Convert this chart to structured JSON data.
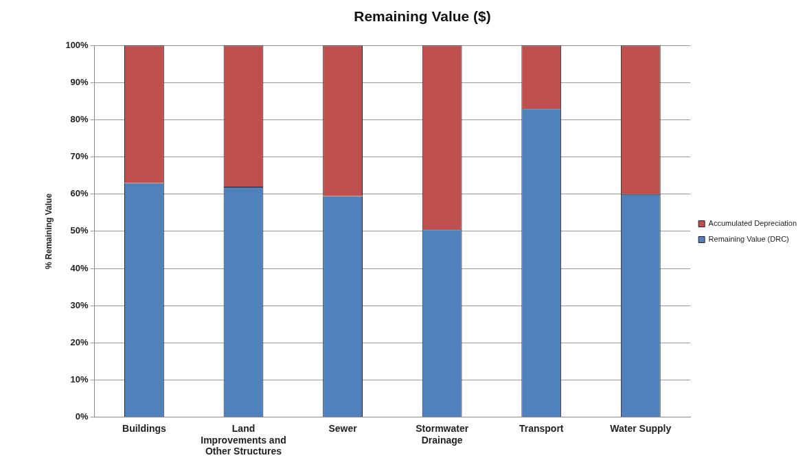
{
  "chart_data": {
    "type": "bar",
    "title": "Remaining Value ($)",
    "ylabel": "% Remaining Value",
    "categories": [
      "Buildings",
      "Land Improvements and Other Structures",
      "Sewer",
      "Stormwater Drainage",
      "Transport",
      "Water Supply"
    ],
    "stacked": true,
    "series": [
      {
        "name": "Remaining Value (DRC)",
        "color": "#4f81bd",
        "values": [
          63,
          62,
          59.5,
          50.5,
          83,
          60
        ]
      },
      {
        "name": "Accumulated Depreciation",
        "color": "#c0504d",
        "values": [
          37,
          38,
          40.5,
          49.5,
          17,
          40
        ]
      }
    ],
    "ylim": [
      0,
      100
    ],
    "yticks": [
      {
        "value": 0,
        "label": "0%"
      },
      {
        "value": 10,
        "label": "10%"
      },
      {
        "value": 20,
        "label": "20%"
      },
      {
        "value": 30,
        "label": "30%"
      },
      {
        "value": 40,
        "label": "40%"
      },
      {
        "value": 50,
        "label": "50%"
      },
      {
        "value": 60,
        "label": "60%"
      },
      {
        "value": 70,
        "label": "70%"
      },
      {
        "value": 80,
        "label": "80%"
      },
      {
        "value": 90,
        "label": "90%"
      },
      {
        "value": 100,
        "label": "100%"
      }
    ],
    "grid": "y",
    "legend": "right"
  }
}
